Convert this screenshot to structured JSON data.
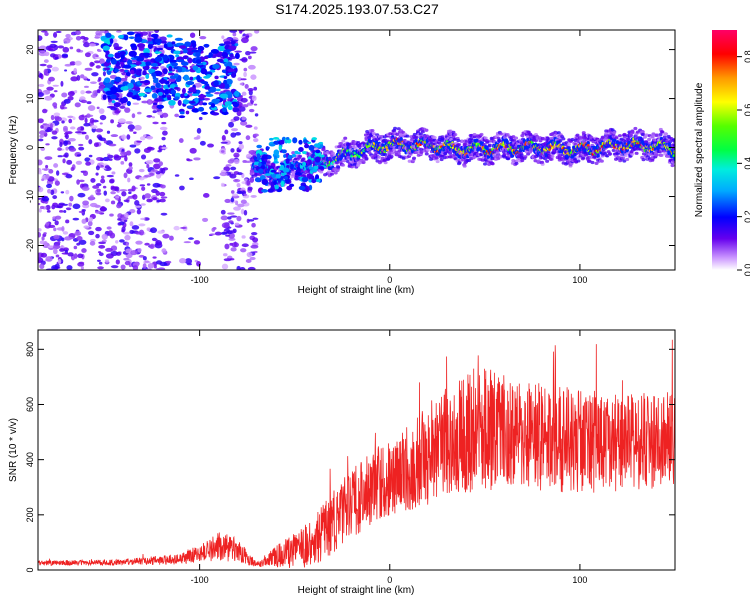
{
  "title": "S174.2025.193.07.53.C27",
  "chart_data": [
    {
      "type": "heatmap",
      "xlabel": "Height of straight line (km)",
      "ylabel": "Frequency (Hz)",
      "xlim": [
        -185,
        150
      ],
      "ylim": [
        -25,
        24
      ],
      "xticks": [
        -100,
        0,
        100
      ],
      "yticks": [
        -20,
        -10,
        0,
        10,
        20
      ],
      "colorbar": {
        "label": "Normalized spectral amplitude",
        "range": [
          0.0,
          0.9
        ],
        "ticks": [
          0.0,
          0.2,
          0.4,
          0.6,
          0.8
        ],
        "tick_labels": [
          "0.0",
          "0.2",
          "0.4",
          "0.6",
          "0.8"
        ]
      },
      "ridge": {
        "description_x_km": [
          -70,
          -60,
          -50,
          -40,
          -30,
          -20,
          -10,
          0,
          20,
          40,
          60,
          80,
          100,
          120,
          140,
          150
        ],
        "frequency_hz": [
          -3,
          -6,
          -4,
          -3,
          -2.5,
          -1,
          0,
          0.5,
          0.5,
          -0.5,
          0,
          0,
          -0.5,
          0.5,
          0.5,
          -0.5
        ],
        "amplitude": [
          0.35,
          0.3,
          0.35,
          0.4,
          0.6,
          0.7,
          0.7,
          0.8,
          0.85,
          0.8,
          0.85,
          0.8,
          0.85,
          0.85,
          0.85,
          0.8
        ]
      },
      "upper_cluster": {
        "x_km": [
          -150,
          -80
        ],
        "freq_hz": [
          8,
          22
        ],
        "amplitude": [
          0.2,
          0.35
        ]
      }
    },
    {
      "type": "line",
      "xlabel": "Height of straight line (km)",
      "ylabel": "SNR (10 * v/v)",
      "xlim": [
        -185,
        150
      ],
      "ylim": [
        0,
        870
      ],
      "xticks": [
        -100,
        0,
        100
      ],
      "yticks": [
        0,
        200,
        400,
        600,
        800
      ],
      "color": "#ee2222",
      "envelope": {
        "x": [
          -185,
          -140,
          -110,
          -100,
          -90,
          -80,
          -70,
          -60,
          -50,
          -40,
          -30,
          -20,
          -10,
          0,
          10,
          20,
          30,
          40,
          50,
          60,
          80,
          100,
          120,
          150
        ],
        "mean": [
          25,
          28,
          40,
          60,
          85,
          70,
          20,
          50,
          70,
          100,
          170,
          240,
          300,
          330,
          370,
          420,
          470,
          490,
          510,
          500,
          480,
          470,
          460,
          470
        ],
        "spread": [
          10,
          14,
          25,
          40,
          70,
          60,
          10,
          50,
          80,
          110,
          150,
          170,
          170,
          170,
          200,
          230,
          260,
          270,
          280,
          260,
          250,
          240,
          220,
          230
        ]
      }
    }
  ]
}
